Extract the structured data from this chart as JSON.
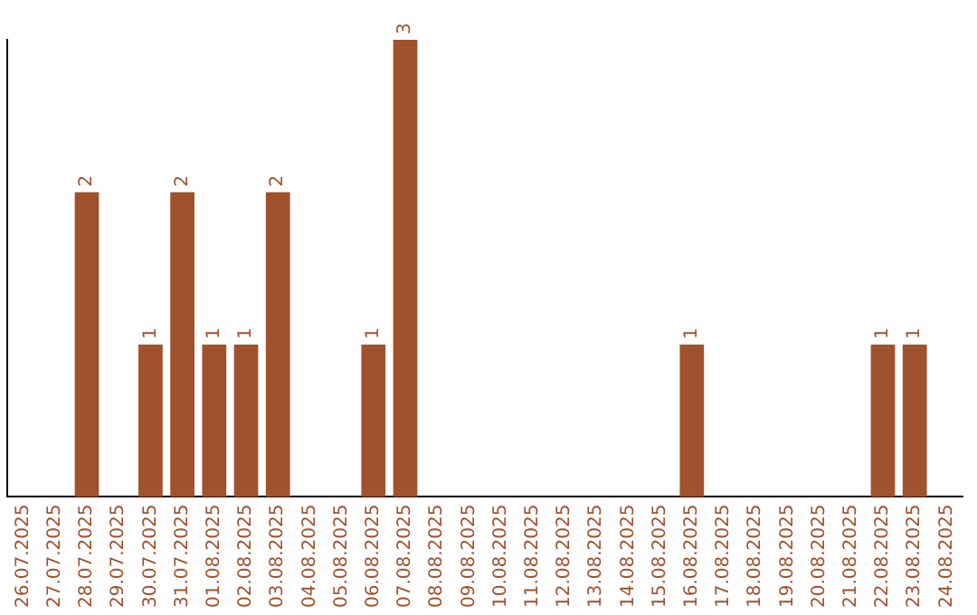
{
  "chart_data": {
    "type": "bar",
    "categories": [
      "26.07.2025",
      "27.07.2025",
      "28.07.2025",
      "29.07.2025",
      "30.07.2025",
      "31.07.2025",
      "01.08.2025",
      "02.08.2025",
      "03.08.2025",
      "04.08.2025",
      "05.08.2025",
      "06.08.2025",
      "07.08.2025",
      "08.08.2025",
      "09.08.2025",
      "10.08.2025",
      "11.08.2025",
      "12.08.2025",
      "13.08.2025",
      "14.08.2025",
      "15.08.2025",
      "16.08.2025",
      "17.08.2025",
      "18.08.2025",
      "19.08.2025",
      "20.08.2025",
      "21.08.2025",
      "22.08.2025",
      "23.08.2025",
      "24.08.2025"
    ],
    "values": [
      0,
      0,
      2,
      0,
      1,
      2,
      1,
      1,
      2,
      0,
      0,
      1,
      3,
      0,
      0,
      0,
      0,
      0,
      0,
      0,
      0,
      1,
      0,
      0,
      0,
      0,
      0,
      1,
      1,
      0
    ],
    "value_labels": [
      null,
      null,
      "2",
      null,
      "1",
      "2",
      "1",
      "1",
      "2",
      null,
      null,
      "1",
      "3",
      null,
      null,
      null,
      null,
      null,
      null,
      null,
      null,
      "1",
      null,
      null,
      null,
      null,
      null,
      "1",
      "1",
      null
    ],
    "color": "#a0522d",
    "grid": false,
    "legend": false
  }
}
